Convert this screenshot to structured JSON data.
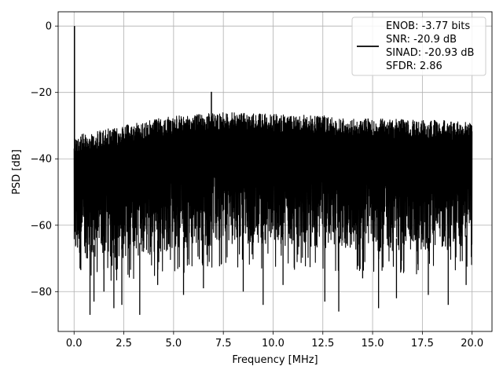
{
  "chart_data": {
    "type": "line",
    "xlabel": "Frequency [MHz]",
    "ylabel": "PSD [dB]",
    "xlim": [
      -0.8,
      21.0
    ],
    "ylim": [
      -92,
      4.3
    ],
    "x_ticks": [
      0.0,
      2.5,
      5.0,
      7.5,
      10.0,
      12.5,
      15.0,
      17.5,
      20.0
    ],
    "x_tick_labels": [
      "0.0",
      "2.5",
      "5.0",
      "7.5",
      "10.0",
      "12.5",
      "15.0",
      "17.5",
      "20.0"
    ],
    "y_ticks": [
      0,
      -20,
      -40,
      -60,
      -80
    ],
    "y_tick_labels": [
      "0",
      "−20",
      "−40",
      "−60",
      "−80"
    ],
    "grid": true,
    "legend_position": "upper-right",
    "legend": {
      "lines": [
        "ENOB: -3.77 bits",
        "SNR: -20.9 dB",
        "SINAD: -20.93 dB",
        "SFDR: 2.86"
      ]
    },
    "series": [
      {
        "color": "#000000",
        "x_range": [
          0.0,
          20.0
        ],
        "peaks": [
          {
            "x": 0.02,
            "y": 0.0
          },
          {
            "x": 6.9,
            "y": -19.8
          }
        ],
        "noise_upper_envelope": [
          {
            "x": 0.0,
            "y": -33
          },
          {
            "x": 2.5,
            "y": -30
          },
          {
            "x": 5.0,
            "y": -27
          },
          {
            "x": 7.5,
            "y": -26
          },
          {
            "x": 10.0,
            "y": -26.5
          },
          {
            "x": 12.5,
            "y": -27
          },
          {
            "x": 15.0,
            "y": -28
          },
          {
            "x": 17.5,
            "y": -28
          },
          {
            "x": 20.0,
            "y": -29
          }
        ],
        "noise_lower_envelope": [
          {
            "x": 0.0,
            "y": -72
          },
          {
            "x": 2.5,
            "y": -72
          },
          {
            "x": 5.0,
            "y": -70
          },
          {
            "x": 7.5,
            "y": -68
          },
          {
            "x": 10.0,
            "y": -68
          },
          {
            "x": 12.5,
            "y": -69
          },
          {
            "x": 15.0,
            "y": -70
          },
          {
            "x": 17.5,
            "y": -70
          },
          {
            "x": 20.0,
            "y": -69
          }
        ],
        "deep_notches": [
          {
            "x": 0.3,
            "y": -73
          },
          {
            "x": 0.8,
            "y": -87
          },
          {
            "x": 1.0,
            "y": -83
          },
          {
            "x": 1.5,
            "y": -80
          },
          {
            "x": 2.0,
            "y": -85
          },
          {
            "x": 2.4,
            "y": -84
          },
          {
            "x": 3.3,
            "y": -87
          },
          {
            "x": 4.2,
            "y": -78
          },
          {
            "x": 5.5,
            "y": -81
          },
          {
            "x": 6.5,
            "y": -79
          },
          {
            "x": 8.5,
            "y": -80
          },
          {
            "x": 9.5,
            "y": -84
          },
          {
            "x": 10.5,
            "y": -78
          },
          {
            "x": 12.6,
            "y": -83
          },
          {
            "x": 13.3,
            "y": -86
          },
          {
            "x": 14.5,
            "y": -76
          },
          {
            "x": 15.3,
            "y": -85
          },
          {
            "x": 16.2,
            "y": -82
          },
          {
            "x": 17.8,
            "y": -81
          },
          {
            "x": 18.8,
            "y": -84
          },
          {
            "x": 19.7,
            "y": -78
          }
        ]
      }
    ]
  }
}
